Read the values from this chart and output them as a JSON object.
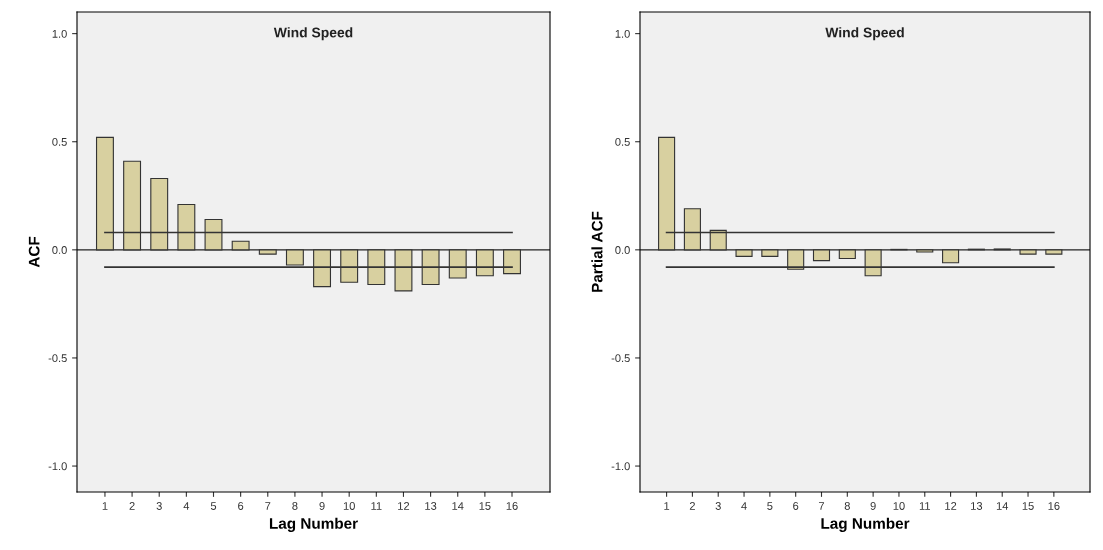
{
  "chart_data": [
    {
      "type": "bar",
      "title": "Wind Speed",
      "xlabel": "Lag Number",
      "ylabel": "ACF",
      "categories": [
        "1",
        "2",
        "3",
        "4",
        "5",
        "6",
        "7",
        "8",
        "9",
        "10",
        "11",
        "12",
        "13",
        "14",
        "15",
        "16"
      ],
      "values": [
        0.52,
        0.41,
        0.33,
        0.21,
        0.14,
        0.04,
        -0.02,
        -0.07,
        -0.17,
        -0.15,
        -0.16,
        -0.19,
        -0.16,
        -0.13,
        -0.12,
        -0.11
      ],
      "color": "#d8d0a0",
      "ylim": [
        -1.12,
        1.1
      ],
      "yticks": [
        {
          "value": -1.0,
          "label": "-1.0"
        },
        {
          "value": -0.5,
          "label": "-0.5"
        },
        {
          "value": 0.0,
          "label": "0.0"
        },
        {
          "value": 0.5,
          "label": "0.5"
        },
        {
          "value": 1.0,
          "label": "1.0"
        }
      ],
      "ref_lines": [
        {
          "axis": "y",
          "value": 0.0,
          "color": "#222222"
        },
        {
          "axis": "y",
          "value": 0.08,
          "color": "#333333"
        },
        {
          "axis": "y",
          "value": -0.08,
          "color": "#333333"
        }
      ],
      "grid": false,
      "legend": false
    },
    {
      "type": "bar",
      "title": "Wind Speed",
      "xlabel": "Lag Number",
      "ylabel": "Partial ACF",
      "categories": [
        "1",
        "2",
        "3",
        "4",
        "5",
        "6",
        "7",
        "8",
        "9",
        "10",
        "11",
        "12",
        "13",
        "14",
        "15",
        "16"
      ],
      "values": [
        0.52,
        0.19,
        0.09,
        -0.03,
        -0.03,
        -0.09,
        -0.05,
        -0.04,
        -0.12,
        0.002,
        -0.01,
        -0.06,
        0.003,
        0.004,
        -0.02,
        -0.02
      ],
      "color": "#d8d0a0",
      "ylim": [
        -1.12,
        1.1
      ],
      "yticks": [
        {
          "value": -1.0,
          "label": "-1.0"
        },
        {
          "value": -0.5,
          "label": "-0.5"
        },
        {
          "value": 0.0,
          "label": "0.0"
        },
        {
          "value": 0.5,
          "label": "0.5"
        },
        {
          "value": 1.0,
          "label": "1.0"
        }
      ],
      "ref_lines": [
        {
          "axis": "y",
          "value": 0.0,
          "color": "#222222"
        },
        {
          "axis": "y",
          "value": 0.08,
          "color": "#333333"
        },
        {
          "axis": "y",
          "value": -0.08,
          "color": "#333333"
        }
      ],
      "grid": false,
      "legend": false
    }
  ]
}
